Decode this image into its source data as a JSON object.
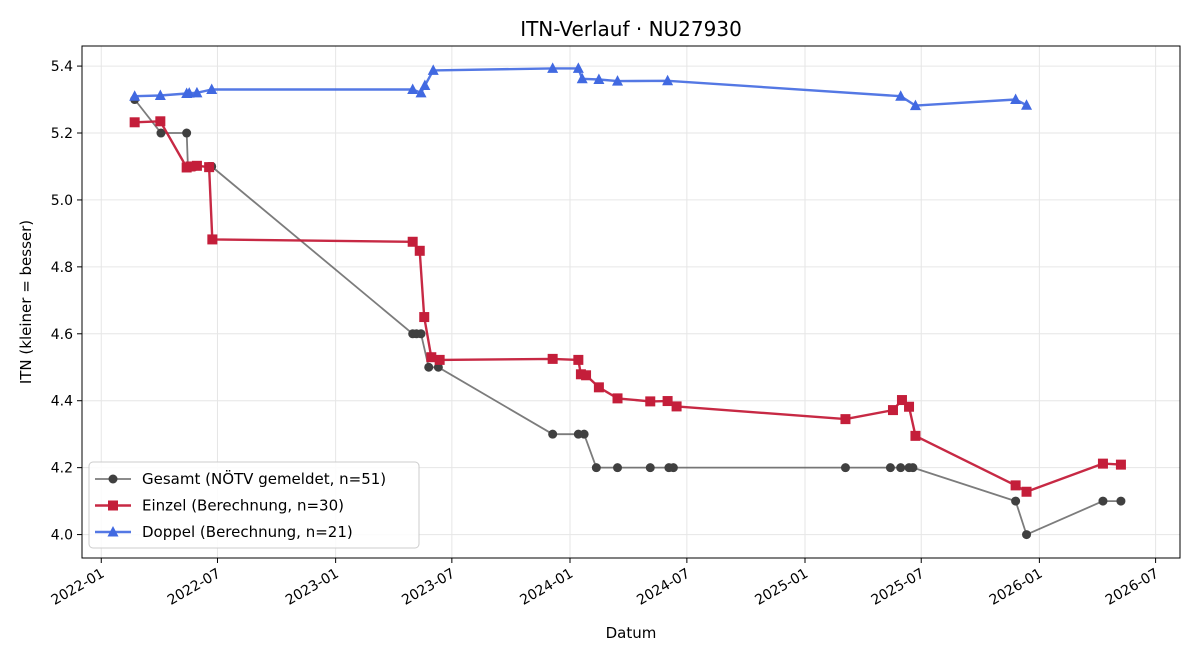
{
  "chart_data": {
    "type": "line",
    "title": "ITN-Verlauf · NU27930",
    "xlabel": "Datum",
    "ylabel": "ITN  (kleiner = besser)",
    "ylim": [
      3.93,
      5.46
    ],
    "xlim": [
      "2021-12-02",
      "2026-08-08"
    ],
    "x_ticks": [
      "2022-01",
      "2022-07",
      "2023-01",
      "2023-07",
      "2024-01",
      "2024-07",
      "2025-01",
      "2025-07",
      "2026-01",
      "2026-07"
    ],
    "y_ticks": [
      "4.0",
      "4.2",
      "4.4",
      "4.6",
      "4.8",
      "5.0",
      "5.2",
      "5.4"
    ],
    "grid": true,
    "legend_position": "lower-left",
    "series": [
      {
        "name": "Gesamt (NÖTV gemeldet, n=51)",
        "color": "#444444",
        "marker": "circle",
        "points": [
          [
            "2022-02-22",
            5.3
          ],
          [
            "2022-04-04",
            5.2
          ],
          [
            "2022-05-14",
            5.2
          ],
          [
            "2022-05-16",
            5.1
          ],
          [
            "2022-05-20",
            5.1
          ],
          [
            "2022-05-27",
            5.1
          ],
          [
            "2022-06-18",
            5.1
          ],
          [
            "2022-06-22",
            5.1
          ],
          [
            "2023-05-01",
            4.6
          ],
          [
            "2023-05-07",
            4.6
          ],
          [
            "2023-05-14",
            4.6
          ],
          [
            "2023-05-26",
            4.5
          ],
          [
            "2023-06-10",
            4.5
          ],
          [
            "2023-12-05",
            4.3
          ],
          [
            "2024-01-14",
            4.3
          ],
          [
            "2024-01-23",
            4.3
          ],
          [
            "2024-02-11",
            4.2
          ],
          [
            "2024-03-15",
            4.2
          ],
          [
            "2024-05-05",
            4.2
          ],
          [
            "2024-06-03",
            4.2
          ],
          [
            "2024-06-10",
            4.2
          ],
          [
            "2025-03-05",
            4.2
          ],
          [
            "2025-05-14",
            4.2
          ],
          [
            "2025-05-30",
            4.2
          ],
          [
            "2025-06-12",
            4.2
          ],
          [
            "2025-06-18",
            4.2
          ],
          [
            "2025-11-25",
            4.1
          ],
          [
            "2025-12-12",
            4.0
          ],
          [
            "2026-04-10",
            4.1
          ],
          [
            "2026-05-08",
            4.1
          ]
        ]
      },
      {
        "name": "Einzel (Berechnung, n=30)",
        "color": "#c41e3a",
        "marker": "square",
        "points": [
          [
            "2022-02-22",
            5.232
          ],
          [
            "2022-04-03",
            5.235
          ],
          [
            "2022-05-14",
            5.097
          ],
          [
            "2022-05-20",
            5.1
          ],
          [
            "2022-05-30",
            5.102
          ],
          [
            "2022-06-18",
            5.098
          ],
          [
            "2022-06-23",
            4.882
          ],
          [
            "2023-05-01",
            4.875
          ],
          [
            "2023-05-12",
            4.848
          ],
          [
            "2023-05-19",
            4.65
          ],
          [
            "2023-05-30",
            4.53
          ],
          [
            "2023-06-12",
            4.522
          ],
          [
            "2023-12-05",
            4.525
          ],
          [
            "2024-01-14",
            4.522
          ],
          [
            "2024-01-18",
            4.479
          ],
          [
            "2024-01-26",
            4.476
          ],
          [
            "2024-02-15",
            4.44
          ],
          [
            "2024-03-15",
            4.407
          ],
          [
            "2024-05-05",
            4.398
          ],
          [
            "2024-06-01",
            4.399
          ],
          [
            "2024-06-15",
            4.383
          ],
          [
            "2025-03-05",
            4.345
          ],
          [
            "2025-05-18",
            4.372
          ],
          [
            "2025-06-01",
            4.402
          ],
          [
            "2025-06-12",
            4.382
          ],
          [
            "2025-06-22",
            4.295
          ],
          [
            "2025-11-25",
            4.147
          ],
          [
            "2025-12-12",
            4.128
          ],
          [
            "2026-04-10",
            4.212
          ],
          [
            "2026-05-08",
            4.209
          ]
        ]
      },
      {
        "name": "Doppel (Berechnung, n=21)",
        "color": "#4169e1",
        "marker": "triangle",
        "points": [
          [
            "2022-02-22",
            5.31
          ],
          [
            "2022-04-03",
            5.312
          ],
          [
            "2022-05-14",
            5.318
          ],
          [
            "2022-05-18",
            5.319
          ],
          [
            "2022-05-30",
            5.32
          ],
          [
            "2022-06-22",
            5.33
          ],
          [
            "2023-05-01",
            5.33
          ],
          [
            "2023-05-14",
            5.32
          ],
          [
            "2023-05-20",
            5.342
          ],
          [
            "2023-06-02",
            5.387
          ],
          [
            "2023-12-05",
            5.393
          ],
          [
            "2024-01-14",
            5.393
          ],
          [
            "2024-01-20",
            5.362
          ],
          [
            "2024-02-15",
            5.36
          ],
          [
            "2024-03-15",
            5.355
          ],
          [
            "2024-06-01",
            5.356
          ],
          [
            "2025-05-30",
            5.31
          ],
          [
            "2025-06-22",
            5.282
          ],
          [
            "2025-11-25",
            5.3
          ],
          [
            "2025-12-12",
            5.283
          ]
        ]
      }
    ]
  }
}
